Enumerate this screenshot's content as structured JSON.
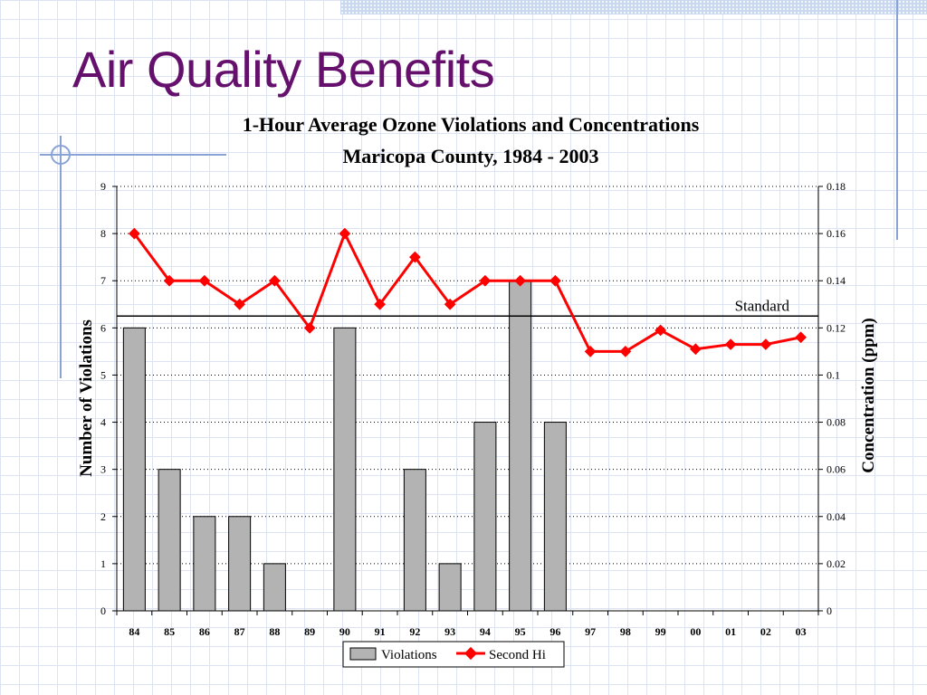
{
  "slide": {
    "title": "Air Quality Benefits"
  },
  "chart_data": {
    "type": "bar",
    "title": "1-Hour Average Ozone Violations and Concentrations",
    "subtitle": "Maricopa County, 1984 - 2003",
    "ylabel": "Number of Violations",
    "y2label": "Concentration (ppm)",
    "xlabel": "",
    "categories": [
      "84",
      "85",
      "86",
      "87",
      "88",
      "89",
      "90",
      "91",
      "92",
      "93",
      "94",
      "95",
      "96",
      "97",
      "98",
      "99",
      "00",
      "01",
      "02",
      "03"
    ],
    "ylim": [
      0,
      9
    ],
    "y2lim": [
      0,
      0.18
    ],
    "yticks": [
      "0",
      "1",
      "2",
      "3",
      "4",
      "5",
      "6",
      "7",
      "8",
      "9"
    ],
    "y2ticks": [
      "0",
      "0.02",
      "0.04",
      "0.06",
      "0.08",
      "0.1",
      "0.12",
      "0.14",
      "0.16",
      "0.18"
    ],
    "grid": true,
    "legend_position": "bottom",
    "series": [
      {
        "name": "Violations",
        "type": "bar",
        "axis": "left",
        "color": "#b3b3b3",
        "values": [
          6,
          3,
          2,
          2,
          1,
          0,
          6,
          0,
          3,
          1,
          4,
          7,
          4,
          0,
          0,
          0,
          0,
          0,
          0,
          0
        ]
      },
      {
        "name": "Second Hi",
        "type": "line",
        "axis": "right",
        "color": "#ff0000",
        "values": [
          0.16,
          0.14,
          0.14,
          0.13,
          0.14,
          0.12,
          0.16,
          0.13,
          0.15,
          0.13,
          0.14,
          0.14,
          0.14,
          0.11,
          0.11,
          0.119,
          0.111,
          0.113,
          0.113,
          0.116
        ]
      }
    ],
    "annotations": [
      {
        "text": "Standard",
        "axis": "right",
        "value": 0.125
      }
    ]
  }
}
